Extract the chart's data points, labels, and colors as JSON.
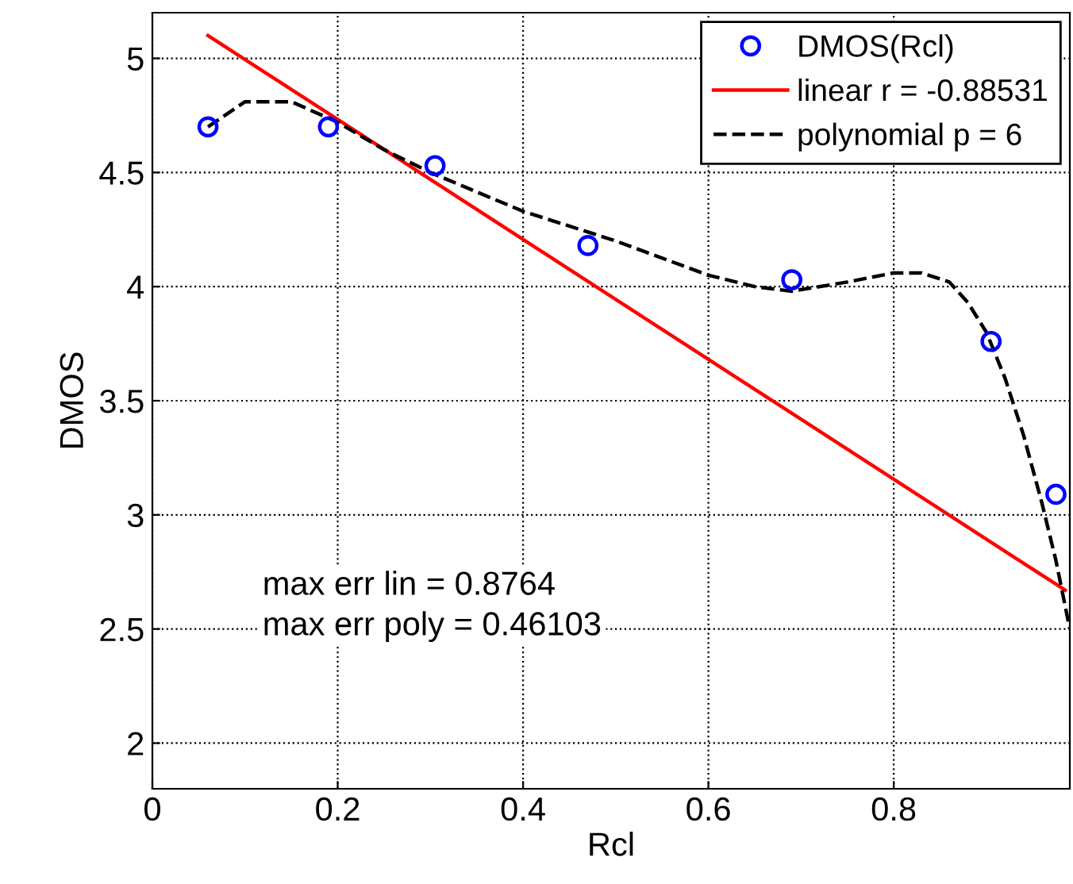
{
  "chart_data": {
    "type": "scatter",
    "xlabel": "Rcl",
    "ylabel": "DMOS",
    "xlim": [
      0,
      0.99
    ],
    "ylim": [
      1.8,
      5.2
    ],
    "xticks": [
      0,
      0.2,
      0.4,
      0.6,
      0.8
    ],
    "yticks": [
      2,
      2.5,
      3,
      3.5,
      4,
      4.5,
      5
    ],
    "grid": true,
    "legend": "top right",
    "series": [
      {
        "name": "DMOS(Rcl)",
        "color": "#0000ff",
        "marker": "circle",
        "x": [
          0.06,
          0.19,
          0.305,
          0.47,
          0.69,
          0.905,
          0.975
        ],
        "values": [
          4.7,
          4.7,
          4.53,
          4.18,
          4.03,
          3.76,
          3.09
        ]
      },
      {
        "name": "linear r = -0.88531",
        "type": "line",
        "color": "#ff0000",
        "line_style": "solid",
        "marker": "none",
        "x": [
          0.06,
          0.985
        ],
        "values": [
          5.1,
          2.67
        ]
      },
      {
        "name": "polynomial p = 6",
        "type": "line",
        "color": "#000000",
        "line_style": "dashed",
        "marker": "none",
        "x": [
          0.06,
          0.1,
          0.15,
          0.2,
          0.25,
          0.3,
          0.4,
          0.5,
          0.6,
          0.65,
          0.69,
          0.75,
          0.8,
          0.83,
          0.86,
          0.88,
          0.9,
          0.92,
          0.94,
          0.96,
          0.975,
          0.99
        ],
        "values": [
          4.7,
          4.81,
          4.81,
          4.72,
          4.6,
          4.5,
          4.33,
          4.2,
          4.05,
          4.0,
          3.98,
          4.02,
          4.06,
          4.06,
          4.02,
          3.93,
          3.8,
          3.6,
          3.35,
          3.05,
          2.8,
          2.5
        ]
      }
    ],
    "annotations": [
      "max err lin = 0.8764\nmax err poly = 0.46103"
    ]
  }
}
